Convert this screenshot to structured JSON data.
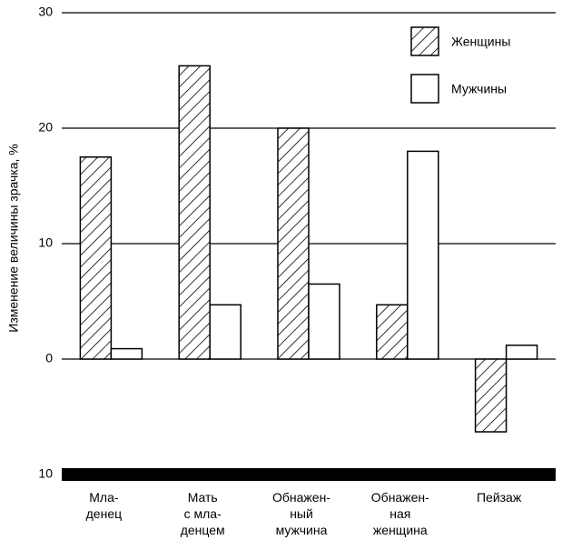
{
  "chart_data": {
    "type": "bar",
    "y_label": "Изменение величины зрачка, %",
    "categories": [
      [
        "Мла-",
        "денец"
      ],
      [
        "Мать",
        "с мла-",
        "денцем"
      ],
      [
        "Обнажен-",
        "ный",
        "мужчина"
      ],
      [
        "Обнажен-",
        "ная",
        "женщина"
      ],
      [
        "Пейзаж"
      ]
    ],
    "series": [
      {
        "name": "Женщины",
        "color": "#000000",
        "hatched": true,
        "values": [
          17.5,
          25.4,
          20,
          4.7,
          -6.3
        ]
      },
      {
        "name": "Мужчины",
        "color": "#000000",
        "hatched": false,
        "values": [
          0.9,
          4.7,
          6.5,
          18,
          1.2
        ]
      }
    ],
    "ylim": [
      -10,
      30
    ],
    "yticks": [
      {
        "value": -10,
        "label": "10"
      },
      0,
      10,
      20,
      30
    ],
    "grid": true,
    "legend": "top-right"
  }
}
